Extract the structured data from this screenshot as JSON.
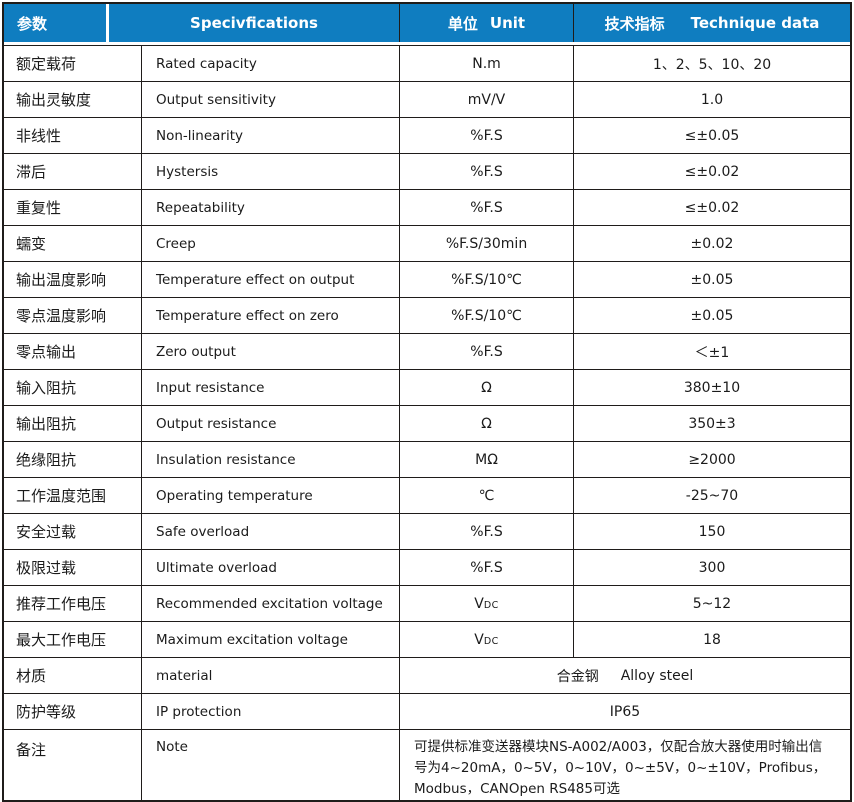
{
  "colors": {
    "header_bg": "#0f7dc0",
    "header_text": "#ffffff",
    "border": "#1f1c1a",
    "body_text": "#1b1b1b"
  },
  "header": {
    "param_cn": "参数",
    "spec_en": "Specivfications",
    "unit_cn": "单位",
    "unit_en": "Unit",
    "tech_cn": "技术指标",
    "tech_en": "Technique data"
  },
  "rows": [
    {
      "cn": "额定载荷",
      "en": "Rated capacity",
      "unit": "N.m",
      "value": "1、2、5、10、20"
    },
    {
      "cn": "输出灵敏度",
      "en": "Output sensitivity",
      "unit": "mV/V",
      "value": "1.0"
    },
    {
      "cn": "非线性",
      "en": "Non-linearity",
      "unit": "%F.S",
      "value": "≤±0.05"
    },
    {
      "cn": "滞后",
      "en": "Hystersis",
      "unit": "%F.S",
      "value": "≤±0.02"
    },
    {
      "cn": "重复性",
      "en": "Repeatability",
      "unit": "%F.S",
      "value": "≤±0.02"
    },
    {
      "cn": "蠕变",
      "en": "Creep",
      "unit": "%F.S/30min",
      "value": "±0.02"
    },
    {
      "cn": "输出温度影响",
      "en": "Temperature effect on output",
      "unit": "%F.S/10℃",
      "value": "±0.05"
    },
    {
      "cn": "零点温度影响",
      "en": "Temperature effect on zero",
      "unit": "%F.S/10℃",
      "value": "±0.05"
    },
    {
      "cn": "零点输出",
      "en": "Zero output",
      "unit": "%F.S",
      "value": "＜±1"
    },
    {
      "cn": "输入阻抗",
      "en": "Input resistance",
      "unit": "Ω",
      "value": "380±10"
    },
    {
      "cn": "输出阻抗",
      "en": "Output resistance",
      "unit": "Ω",
      "value": "350±3"
    },
    {
      "cn": "绝缘阻抗",
      "en": "Insulation resistance",
      "unit": "MΩ",
      "value": "≥2000"
    },
    {
      "cn": "工作温度范围",
      "en": "Operating temperature",
      "unit": "℃",
      "value": "-25~70"
    },
    {
      "cn": "安全过载",
      "en": "Safe overload",
      "unit": "%F.S",
      "value": "150"
    },
    {
      "cn": "极限过载",
      "en": "Ultimate overload",
      "unit": "%F.S",
      "value": "300"
    },
    {
      "cn": "推荐工作电压",
      "en": "Recommended excitation voltage",
      "unit": "V",
      "unit_sub": "DC",
      "value": "5~12"
    },
    {
      "cn": "最大工作电压",
      "en": "Maximum excitation voltage",
      "unit": "V",
      "unit_sub": "DC",
      "value": "18"
    }
  ],
  "material_row": {
    "cn": "材质",
    "en": "material",
    "value_cn": "合金钢",
    "value_en": "Alloy steel"
  },
  "ip_row": {
    "cn": "防护等级",
    "en": "IP protection",
    "value": "IP65"
  },
  "note_row": {
    "cn": "备注",
    "en": "Note",
    "value": "可提供标准变送器模块NS-A002/A003，仅配合放大器使用时输出信号为4~20mA，0~5V，0~10V，0~±5V，0~±10V，Profibus，Modbus，CANOpen RS485可选"
  }
}
